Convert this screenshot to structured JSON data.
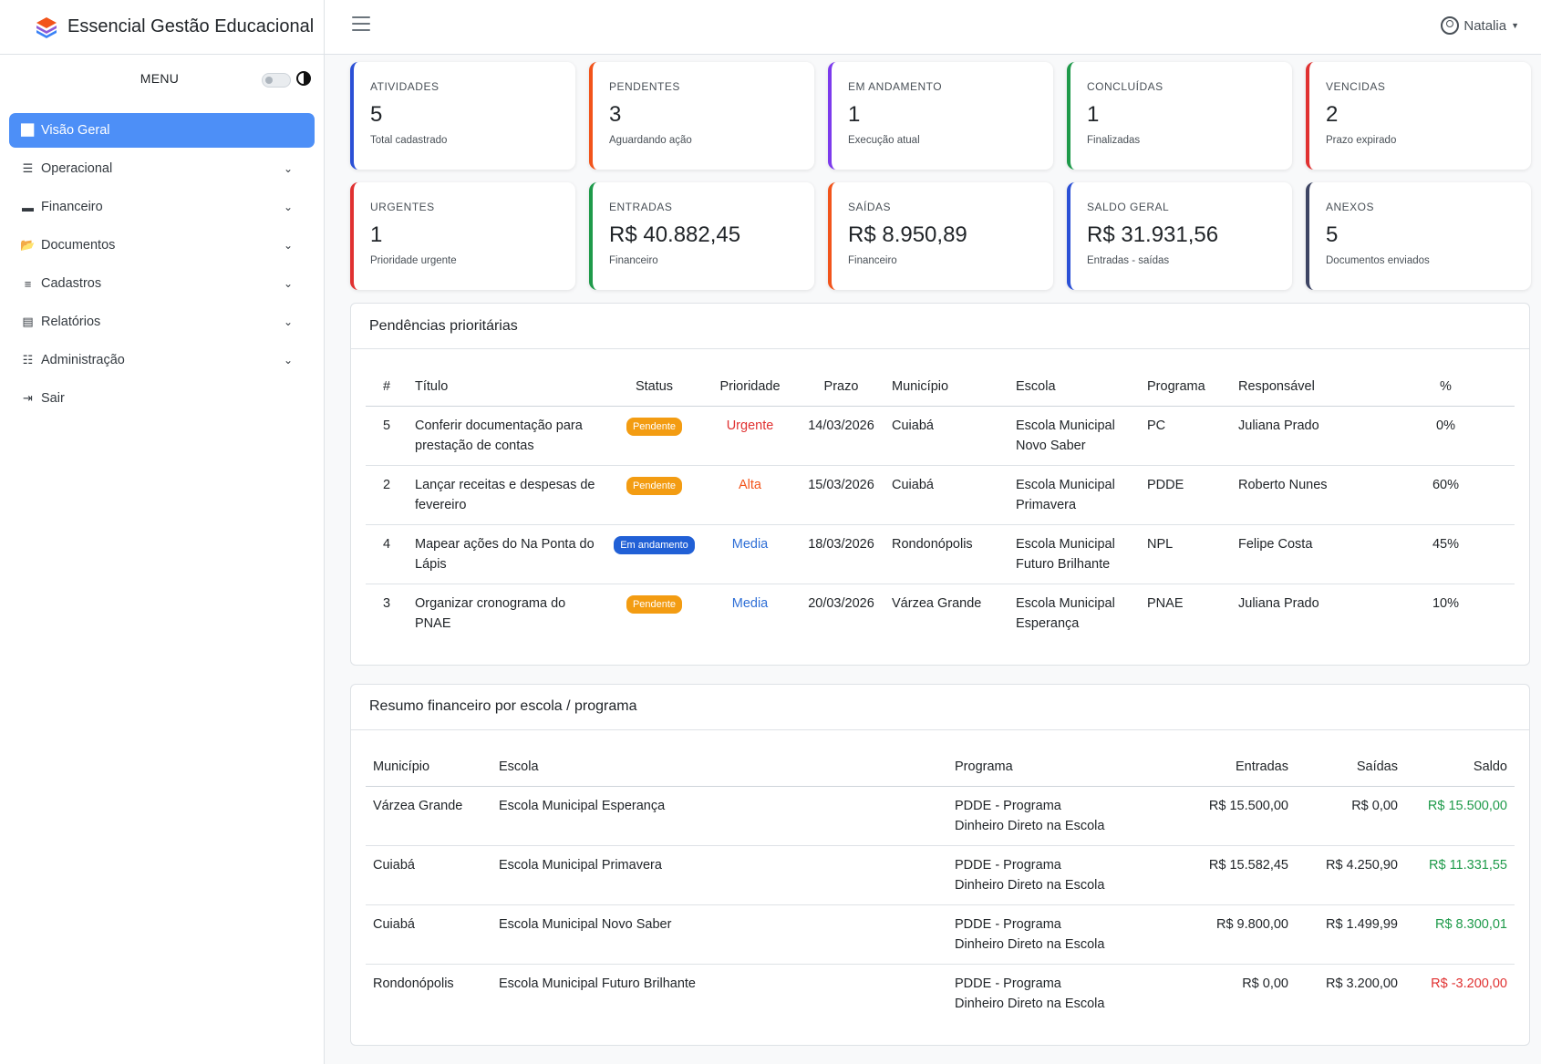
{
  "app": {
    "title": "Essencial Gestão Educacional"
  },
  "sidebar": {
    "menu_title": "MENU",
    "items": [
      {
        "label": "Visão Geral",
        "icon": "chart-line-icon",
        "active": true,
        "has_children": false
      },
      {
        "label": "Operacional",
        "icon": "list-check-icon",
        "active": false,
        "has_children": true
      },
      {
        "label": "Financeiro",
        "icon": "wallet-icon",
        "active": false,
        "has_children": true
      },
      {
        "label": "Documentos",
        "icon": "folder-open-icon",
        "active": false,
        "has_children": true
      },
      {
        "label": "Cadastros",
        "icon": "database-icon",
        "active": false,
        "has_children": true
      },
      {
        "label": "Relatórios",
        "icon": "file-icon",
        "active": false,
        "has_children": true
      },
      {
        "label": "Administração",
        "icon": "sliders-icon",
        "active": false,
        "has_children": true
      },
      {
        "label": "Sair",
        "icon": "sign-out-icon",
        "active": false,
        "has_children": false
      }
    ]
  },
  "topbar": {
    "user_name": "Natalia"
  },
  "cards": [
    {
      "label": "ATIVIDADES",
      "value": "5",
      "sub": "Total cadastrado",
      "color": "#2b50d6"
    },
    {
      "label": "PENDENTES",
      "value": "3",
      "sub": "Aguardando ação",
      "color": "#f2541b"
    },
    {
      "label": "EM ANDAMENTO",
      "value": "1",
      "sub": "Execução atual",
      "color": "#7c3aed"
    },
    {
      "label": "CONCLUÍDAS",
      "value": "1",
      "sub": "Finalizadas",
      "color": "#1e9a4a"
    },
    {
      "label": "VENCIDAS",
      "value": "2",
      "sub": "Prazo expirado",
      "color": "#e03131"
    },
    {
      "label": "URGENTES",
      "value": "1",
      "sub": "Prioridade urgente",
      "color": "#e03131"
    },
    {
      "label": "ENTRADAS",
      "value": "R$ 40.882,45",
      "sub": "Financeiro",
      "color": "#1e9a4a"
    },
    {
      "label": "SAÍDAS",
      "value": "R$ 8.950,89",
      "sub": "Financeiro",
      "color": "#f2541b"
    },
    {
      "label": "SALDO GERAL",
      "value": "R$ 31.931,56",
      "sub": "Entradas - saídas",
      "color": "#2b50d6"
    },
    {
      "label": "ANEXOS",
      "value": "5",
      "sub": "Documentos enviados",
      "color": "#3d4463"
    }
  ],
  "pendencias": {
    "title": "Pendências prioritárias",
    "headers": [
      "#",
      "Título",
      "Status",
      "Prioridade",
      "Prazo",
      "Município",
      "Escola",
      "Programa",
      "Responsável",
      "%"
    ],
    "rows": [
      {
        "id": "5",
        "titulo": "Conferir documentação para prestação de contas",
        "status": "Pendente",
        "prioridade": "Urgente",
        "prazo": "14/03/2026",
        "municipio": "Cuiabá",
        "escola": "Escola Municipal Novo Saber",
        "programa": "PC",
        "responsavel": "Juliana Prado",
        "pct": "0%"
      },
      {
        "id": "2",
        "titulo": "Lançar receitas e despesas de fevereiro",
        "status": "Pendente",
        "prioridade": "Alta",
        "prazo": "15/03/2026",
        "municipio": "Cuiabá",
        "escola": "Escola Municipal Primavera",
        "programa": "PDDE",
        "responsavel": "Roberto Nunes",
        "pct": "60%"
      },
      {
        "id": "4",
        "titulo": "Mapear ações do Na Ponta do Lápis",
        "status": "Em andamento",
        "prioridade": "Media",
        "prazo": "18/03/2026",
        "municipio": "Rondonópolis",
        "escola": "Escola Municipal Futuro Brilhante",
        "programa": "NPL",
        "responsavel": "Felipe Costa",
        "pct": "45%"
      },
      {
        "id": "3",
        "titulo": "Organizar cronograma do PNAE",
        "status": "Pendente",
        "prioridade": "Media",
        "prazo": "20/03/2026",
        "municipio": "Várzea Grande",
        "escola": "Escola Municipal Esperança",
        "programa": "PNAE",
        "responsavel": "Juliana Prado",
        "pct": "10%"
      }
    ]
  },
  "resumo": {
    "title": "Resumo financeiro por escola / programa",
    "headers": [
      "Município",
      "Escola",
      "Programa",
      "Entradas",
      "Saídas",
      "Saldo"
    ],
    "rows": [
      {
        "municipio": "Várzea Grande",
        "escola": "Escola Municipal Esperança",
        "programa": "PDDE - Programa Dinheiro Direto na Escola",
        "entradas": "R$ 15.500,00",
        "saidas": "R$ 0,00",
        "saldo": "R$ 15.500,00",
        "positive": true
      },
      {
        "municipio": "Cuiabá",
        "escola": "Escola Municipal Primavera",
        "programa": "PDDE - Programa Dinheiro Direto na Escola",
        "entradas": "R$ 15.582,45",
        "saidas": "R$ 4.250,90",
        "saldo": "R$ 11.331,55",
        "positive": true
      },
      {
        "municipio": "Cuiabá",
        "escola": "Escola Municipal Novo Saber",
        "programa": "PDDE - Programa Dinheiro Direto na Escola",
        "entradas": "R$ 9.800,00",
        "saidas": "R$ 1.499,99",
        "saldo": "R$ 8.300,01",
        "positive": true
      },
      {
        "municipio": "Rondonópolis",
        "escola": "Escola Municipal Futuro Brilhante",
        "programa": "PDDE - Programa Dinheiro Direto na Escola",
        "entradas": "R$ 0,00",
        "saidas": "R$ 3.200,00",
        "saldo": "R$ -3.200,00",
        "positive": false
      }
    ]
  }
}
